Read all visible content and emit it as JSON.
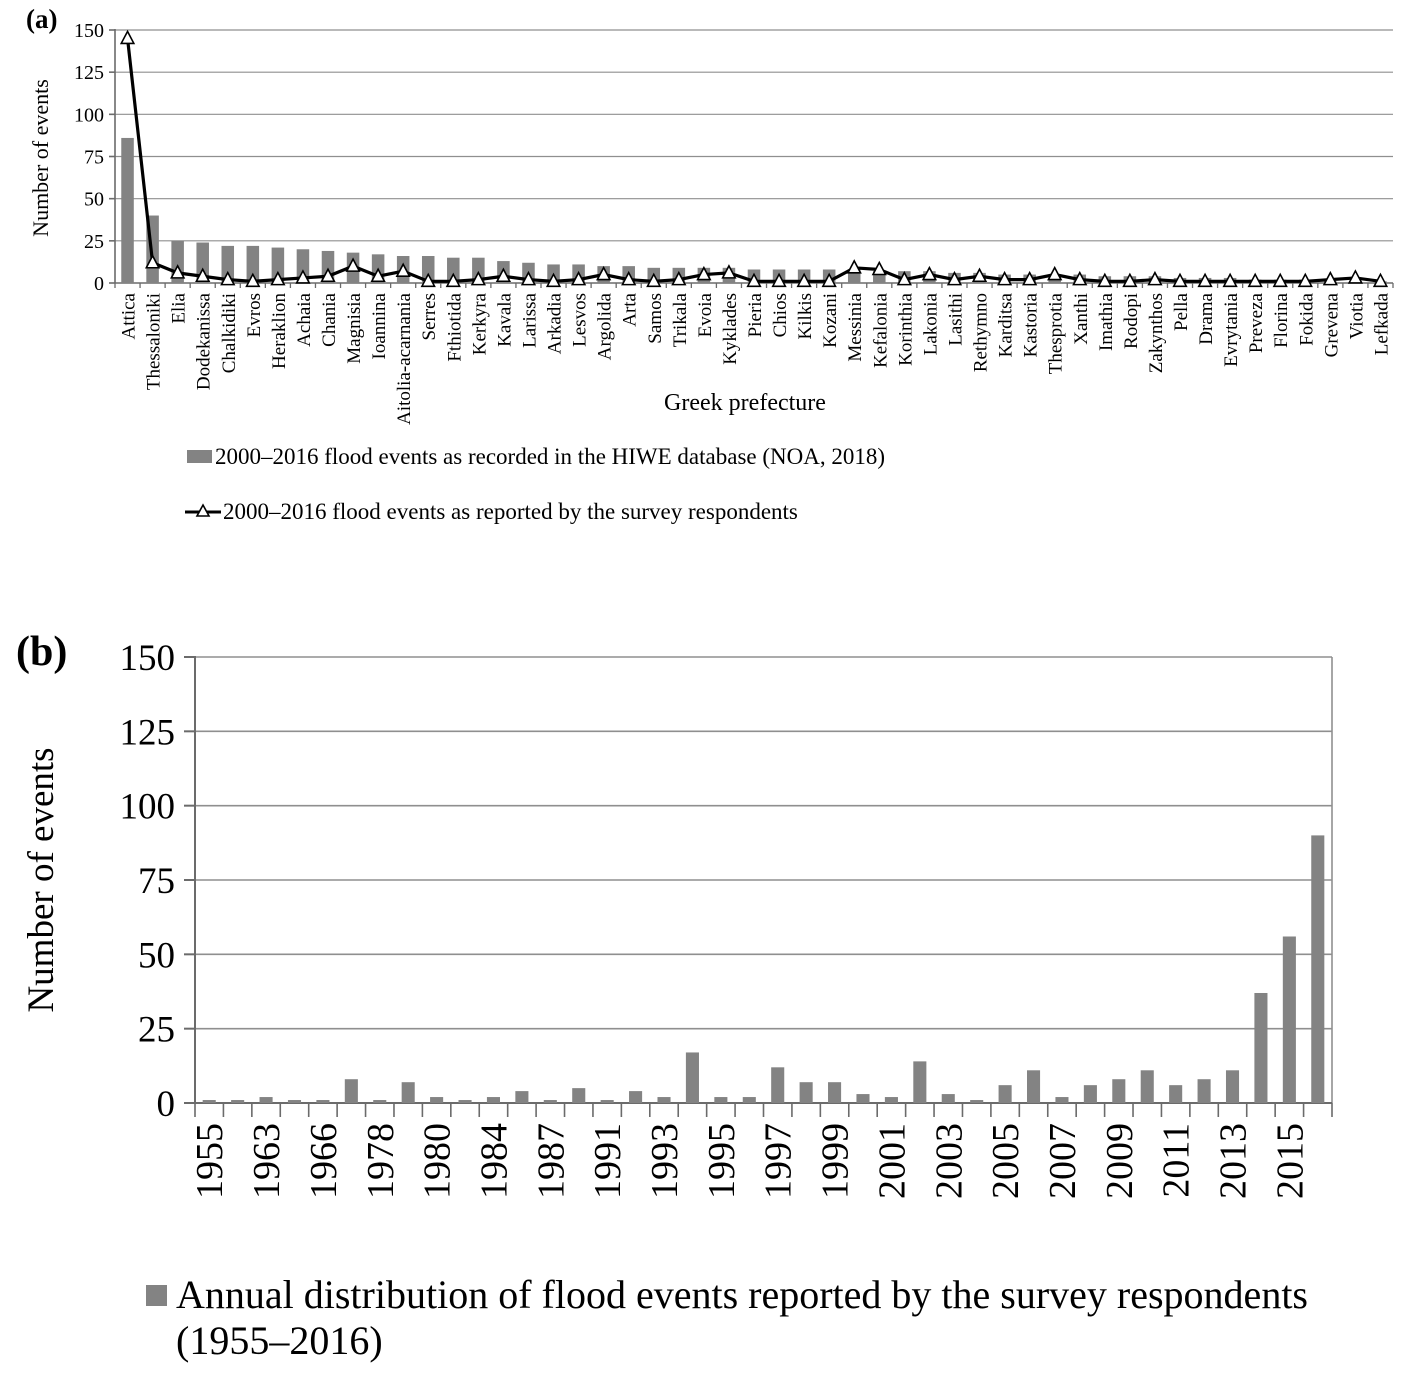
{
  "page": {
    "background": "#ffffff"
  },
  "colors": {
    "bar": "#838383",
    "line": "#000000",
    "marker_fill": "#ffffff",
    "gridline": "#8f8f8f",
    "axis": "#6b6b6b"
  },
  "chart_data": [
    {
      "panel_label": "(a)",
      "type": "bar+line",
      "title": "",
      "xlabel": "Greek prefecture",
      "ylabel": "Number of events",
      "ylim": [
        0,
        150
      ],
      "yticks": [
        0,
        25,
        50,
        75,
        100,
        125,
        150
      ],
      "grid": true,
      "legend_position": "below",
      "categories": [
        "Attica",
        "Thessaloniki",
        "Elia",
        "Dodekanissa",
        "Chalkidiki",
        "Evros",
        "Heraklion",
        "Achaia",
        "Chania",
        "Magnisia",
        "Ioannina",
        "Aitolia-acarnania",
        "Serres",
        "Fthiotida",
        "Kerkyra",
        "Kavala",
        "Larissa",
        "Arkadia",
        "Lesvos",
        "Argolida",
        "Arta",
        "Samos",
        "Trikala",
        "Evoia",
        "Kyklades",
        "Pieria",
        "Chios",
        "Kilkis",
        "Kozani",
        "Messinia",
        "Kefalonia",
        "Korinthia",
        "Lakonia",
        "Lasithi",
        "Rethymno",
        "Karditsa",
        "Kastoria",
        "Thesprotia",
        "Xanthi",
        "Imathia",
        "Rodopi",
        "Zakynthos",
        "Pella",
        "Drama",
        "Evrytania",
        "Preveza",
        "Florina",
        "Fokida",
        "Grevena",
        "Viotia",
        "Lefkada"
      ],
      "series": [
        {
          "name": "2000–2016 flood events as recorded in the HIWE database (NOA, 2018)",
          "type": "bar",
          "color": "#838383",
          "values": [
            86,
            40,
            25,
            24,
            22,
            22,
            21,
            20,
            19,
            18,
            17,
            16,
            16,
            15,
            15,
            13,
            12,
            11,
            11,
            10,
            10,
            9,
            9,
            9,
            9,
            8,
            8,
            8,
            8,
            8,
            7,
            7,
            7,
            6,
            6,
            5,
            5,
            5,
            5,
            4,
            4,
            4,
            3,
            3,
            3,
            2,
            2,
            2,
            1,
            1,
            1
          ]
        },
        {
          "name": "2000–2016 flood events as reported by the survey respondents",
          "type": "line",
          "color": "#000000",
          "marker": "triangle-white",
          "values": [
            145,
            12,
            6,
            4,
            2,
            1,
            2,
            3,
            4,
            10,
            4,
            7,
            1,
            1,
            2,
            4,
            2,
            1,
            2,
            5,
            2,
            1,
            2,
            5,
            6,
            1,
            1,
            1,
            1,
            9,
            8,
            2,
            5,
            2,
            4,
            2,
            2,
            5,
            2,
            1,
            1,
            2,
            1,
            1,
            1,
            1,
            1,
            1,
            2,
            3,
            1
          ]
        }
      ]
    },
    {
      "panel_label": "(b)",
      "type": "bar",
      "title": "",
      "xlabel": "",
      "ylabel": "Number of events",
      "ylim": [
        0,
        150
      ],
      "yticks": [
        0,
        25,
        50,
        75,
        100,
        125,
        150
      ],
      "grid": true,
      "legend_position": "below",
      "x_tick_labels": [
        "1955",
        "1963",
        "1966",
        "1978",
        "1980",
        "1984",
        "1987",
        "1991",
        "1993",
        "1995",
        "1997",
        "1999",
        "2001",
        "2003",
        "2005",
        "2007",
        "2009",
        "2011",
        "2013",
        "2015"
      ],
      "x_label_every": 2,
      "legend_lines": [
        "Annual distribution of flood events reported by the survey respondents",
        "(1955–2016)"
      ],
      "series": [
        {
          "name": "Annual distribution of flood events reported by the survey respondents (1955–2016)",
          "type": "bar",
          "color": "#838383",
          "values": [
            1,
            1,
            2,
            1,
            1,
            8,
            1,
            7,
            2,
            1,
            2,
            4,
            1,
            5,
            1,
            4,
            2,
            17,
            2,
            2,
            12,
            7,
            7,
            3,
            2,
            14,
            3,
            1,
            6,
            11,
            2,
            6,
            8,
            11,
            6,
            8,
            11,
            37,
            56,
            90
          ]
        }
      ]
    }
  ]
}
